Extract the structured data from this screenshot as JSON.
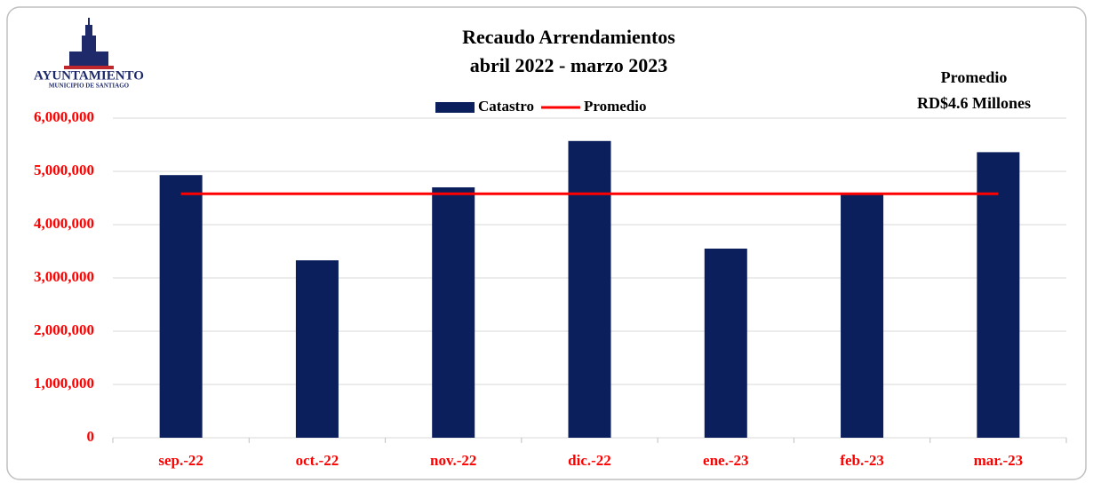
{
  "logo": {
    "name": "AYUNTAMIENTO",
    "subtitle": "MUNICIPIO DE SANTIAGO"
  },
  "chart_data": {
    "type": "bar",
    "title": "Recaudo Arrendamientos",
    "subtitle": "abril 2022 - marzo 2023",
    "annotation": [
      "Promedio",
      "RD$4.6 Millones"
    ],
    "categories": [
      "sep.-22",
      "oct.-22",
      "nov.-22",
      "dic.-22",
      "ene.-23",
      "feb.-23",
      "mar.-23"
    ],
    "series": [
      {
        "name": "Catastro",
        "type": "bar",
        "color": "#0b1f5c",
        "values": [
          4930000,
          3330000,
          4700000,
          5570000,
          3550000,
          4600000,
          5360000
        ]
      },
      {
        "name": "Promedio",
        "type": "line",
        "color": "#ff0000",
        "values": [
          4580000,
          4580000,
          4580000,
          4580000,
          4580000,
          4580000,
          4580000
        ]
      }
    ],
    "ylim": [
      0,
      6000000
    ],
    "yticks": [
      0,
      {
        "value": 1000000,
        "label": "1,000,000"
      },
      {
        "value": 2000000,
        "label": "2,000,000"
      },
      {
        "value": 3000000,
        "label": "3,000,000"
      },
      {
        "value": 4000000,
        "label": "4,000,000"
      },
      {
        "value": 5000000,
        "label": "5,000,000"
      },
      {
        "value": 6000000,
        "label": "6,000,000"
      }
    ],
    "grid": true,
    "legend": "top"
  }
}
